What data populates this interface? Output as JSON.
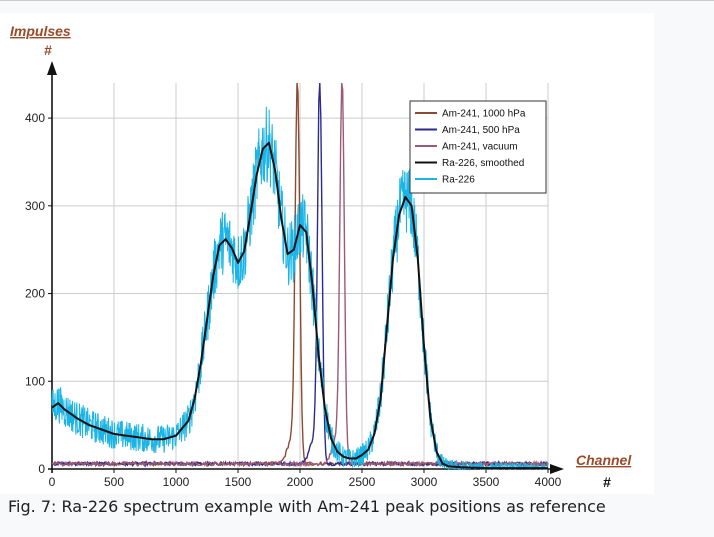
{
  "caption": "Fig. 7: Ra-226 spectrum example with Am-241 peak positions as reference",
  "chart_data": {
    "type": "line",
    "xlabel": "Channel",
    "xunit": "#",
    "ylabel": "Impulses",
    "yunit": "#",
    "xlim": [
      0,
      4000
    ],
    "ylim": [
      0,
      440
    ],
    "xticks": [
      0,
      500,
      1000,
      1500,
      2000,
      2500,
      3000,
      3500,
      4000
    ],
    "yticks": [
      0,
      100,
      200,
      300,
      400
    ],
    "grid": true,
    "legend_position": "top-right",
    "series": [
      {
        "name": "Am-241, 1000 hPa",
        "color": "#8b4a32",
        "peak_channel": 1980,
        "peak_value": 432
      },
      {
        "name": "Am-241, 500 hPa",
        "color": "#2e2a8c",
        "peak_channel": 2160,
        "peak_value": 432
      },
      {
        "name": "Am-241, vacuum",
        "color": "#9a5a78",
        "peak_channel": 2340,
        "peak_value": 432
      },
      {
        "name": "Ra-226, smoothed",
        "color": "#111111",
        "x": [
          0,
          50,
          100,
          200,
          300,
          400,
          500,
          600,
          700,
          800,
          900,
          1000,
          1100,
          1150,
          1200,
          1250,
          1300,
          1350,
          1400,
          1450,
          1500,
          1550,
          1600,
          1650,
          1700,
          1750,
          1800,
          1850,
          1900,
          1950,
          2000,
          2050,
          2100,
          2150,
          2200,
          2250,
          2300,
          2350,
          2400,
          2450,
          2500,
          2550,
          2600,
          2650,
          2700,
          2750,
          2800,
          2850,
          2900,
          2950,
          3000,
          3050,
          3100,
          3150,
          3200,
          3300,
          3500,
          4000
        ],
        "y": [
          70,
          75,
          68,
          58,
          50,
          45,
          40,
          38,
          36,
          34,
          34,
          38,
          55,
          80,
          120,
          170,
          220,
          255,
          262,
          252,
          235,
          248,
          290,
          335,
          365,
          372,
          340,
          285,
          245,
          250,
          278,
          270,
          210,
          130,
          70,
          35,
          20,
          14,
          12,
          12,
          16,
          22,
          40,
          80,
          160,
          240,
          290,
          310,
          300,
          240,
          140,
          60,
          20,
          6,
          3,
          2,
          1,
          1
        ]
      },
      {
        "name": "Ra-226",
        "color": "#1ab4e6",
        "x": [
          0,
          50,
          100,
          200,
          300,
          400,
          500,
          600,
          700,
          800,
          900,
          1000,
          1100,
          1150,
          1200,
          1250,
          1300,
          1350,
          1400,
          1450,
          1500,
          1550,
          1600,
          1650,
          1700,
          1750,
          1800,
          1850,
          1900,
          1950,
          2000,
          2050,
          2100,
          2150,
          2200,
          2250,
          2300,
          2350,
          2400,
          2450,
          2500,
          2550,
          2600,
          2650,
          2700,
          2750,
          2800,
          2850,
          2900,
          2950,
          3000,
          3050,
          3100,
          3150,
          3200,
          3300,
          3500,
          4000
        ],
        "y": [
          70,
          75,
          68,
          58,
          50,
          45,
          40,
          38,
          36,
          34,
          34,
          38,
          55,
          80,
          120,
          170,
          220,
          255,
          262,
          252,
          235,
          248,
          290,
          335,
          365,
          372,
          340,
          285,
          245,
          250,
          278,
          270,
          210,
          130,
          70,
          35,
          20,
          14,
          12,
          12,
          16,
          22,
          40,
          80,
          160,
          240,
          290,
          310,
          300,
          240,
          140,
          60,
          20,
          6,
          3,
          2,
          1,
          1
        ]
      }
    ]
  }
}
